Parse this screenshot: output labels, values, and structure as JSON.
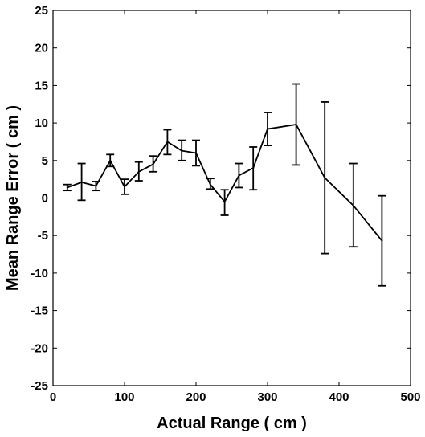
{
  "chart_data": {
    "type": "line",
    "xlabel": "Actual Range ( cm )",
    "ylabel": "Mean Range Error ( cm )",
    "xlim": [
      0,
      500
    ],
    "ylim": [
      -25,
      25
    ],
    "xticks": [
      0,
      100,
      200,
      300,
      400,
      500
    ],
    "yticks": [
      25,
      20,
      15,
      10,
      5,
      0,
      -5,
      -10,
      -15,
      -20,
      -25
    ],
    "grid": false,
    "series": [
      {
        "x": [
          20,
          40,
          60,
          80,
          100,
          120,
          140,
          160,
          180,
          200,
          220,
          240,
          260,
          280,
          300,
          340,
          380,
          420,
          460
        ],
        "y": [
          1.4,
          2.1,
          1.6,
          5.0,
          1.5,
          3.5,
          4.5,
          7.5,
          6.3,
          6.0,
          1.8,
          -0.5,
          3.0,
          4.0,
          9.2,
          9.8,
          2.7,
          -1.0,
          -5.7
        ],
        "y_low": [
          1.0,
          -0.3,
          1.0,
          4.2,
          0.5,
          2.3,
          3.5,
          5.8,
          5.0,
          4.3,
          1.2,
          -2.3,
          1.4,
          1.1,
          7.0,
          4.4,
          -7.4,
          -6.5,
          -11.7
        ],
        "y_high": [
          1.8,
          4.6,
          2.2,
          5.8,
          2.5,
          4.8,
          5.6,
          9.1,
          7.7,
          7.7,
          2.6,
          1.1,
          4.6,
          6.8,
          11.4,
          15.2,
          12.8,
          4.6,
          0.3
        ]
      }
    ]
  }
}
